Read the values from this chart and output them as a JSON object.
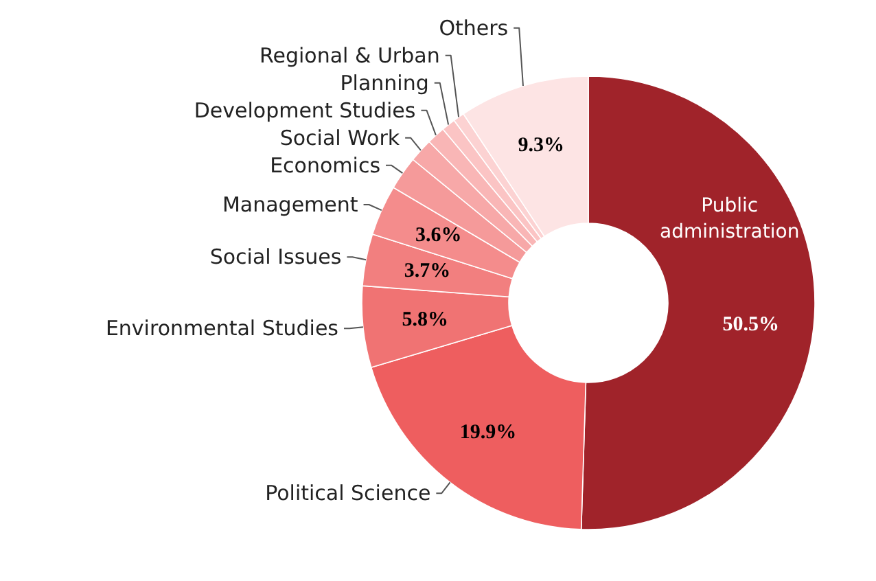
{
  "chart_data": {
    "type": "donut",
    "categories": [
      "Public administration",
      "Political Science",
      "Environmental Studies",
      "Social Issues",
      "Management",
      "Economics",
      "Social Work",
      "Development Studies",
      "Planning",
      "Regional & Urban",
      "Others"
    ],
    "values": [
      50.5,
      19.9,
      5.8,
      3.7,
      3.6,
      2.4,
      1.7,
      1.3,
      1.0,
      0.8,
      9.3
    ],
    "colors": [
      "#a0232a",
      "#ee5e5f",
      "#f07373",
      "#f27f7f",
      "#f48c8c",
      "#f59a9a",
      "#f7a8a8",
      "#f9b6b6",
      "#fbc4c4",
      "#fcd2d2",
      "#fde4e4"
    ],
    "value_labels": [
      "50.5%",
      "19.9%",
      "5.8%",
      "3.7%",
      "3.6%",
      null,
      null,
      null,
      null,
      null,
      "9.3%"
    ]
  }
}
